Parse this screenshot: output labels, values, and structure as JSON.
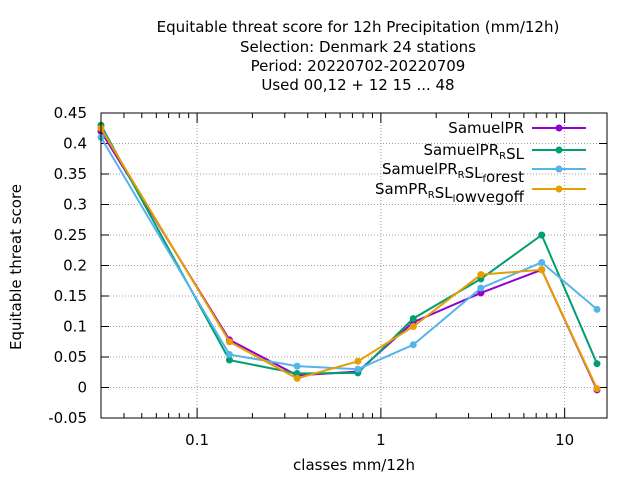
{
  "chart_data": {
    "type": "line",
    "title_lines": [
      "Equitable threat score  for 12h Precipitation (mm/12h)",
      "Selection: Denmark      24 stations",
      "Period: 20220702-20220709",
      "Used  00,12  + 12 15 ... 48"
    ],
    "xlabel": "classes mm/12h",
    "ylabel": "Equitable threat score",
    "x_scale": "log",
    "xlim": [
      0.03,
      17
    ],
    "ylim": [
      -0.05,
      0.45
    ],
    "x_ticks": [
      0.1,
      1,
      10
    ],
    "x_tick_labels": [
      "0.1",
      "1",
      "10"
    ],
    "y_ticks": [
      -0.05,
      0,
      0.05,
      0.1,
      0.15,
      0.2,
      0.25,
      0.3,
      0.35,
      0.4,
      0.45
    ],
    "y_tick_labels": [
      "-0.05",
      "0",
      "0.05",
      "0.1",
      "0.15",
      "0.2",
      "0.25",
      "0.3",
      "0.35",
      "0.4",
      "0.45"
    ],
    "grid": true,
    "legend_position": "top-right",
    "x": [
      0.03,
      0.15,
      0.35,
      0.75,
      1.5,
      3.5,
      7.5,
      15
    ],
    "series": [
      {
        "name": "SamuelPR",
        "legend": {
          "pre": "SamuelPR",
          "sub": "",
          "post": ""
        },
        "color": "#9400d3",
        "values": [
          0.42,
          0.078,
          0.02,
          0.026,
          0.107,
          0.155,
          0.193,
          -0.004
        ]
      },
      {
        "name": "SamuelPR_RSL",
        "legend": {
          "pre": "SamuelPR",
          "sub": "R",
          "post": "SL"
        },
        "color": "#009e73",
        "values": [
          0.43,
          0.045,
          0.023,
          0.024,
          0.113,
          0.178,
          0.25,
          0.039
        ]
      },
      {
        "name": "SamuelPR_RSL_forest",
        "legend": {
          "pre": "SamuelPR",
          "sub": "R",
          "post": "SL",
          "sub2": "f",
          "post2": "orest"
        },
        "color": "#56b4e9",
        "values": [
          0.41,
          0.054,
          0.035,
          0.03,
          0.07,
          0.163,
          0.205,
          0.128
        ]
      },
      {
        "name": "SamPR_RSL_lowvegoff",
        "legend": {
          "pre": "SamPR",
          "sub": "R",
          "post": "SL",
          "sub2": "l",
          "post2": "owvegoff"
        },
        "color": "#e69f00",
        "values": [
          0.425,
          0.075,
          0.015,
          0.043,
          0.1,
          0.185,
          0.193,
          -0.002
        ]
      }
    ]
  }
}
